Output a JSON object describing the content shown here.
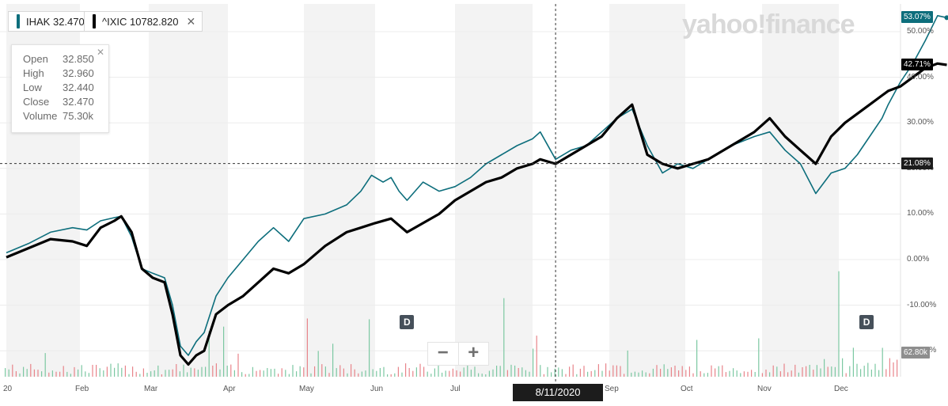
{
  "legend": [
    {
      "symbol": "IHAK",
      "value": "32.470",
      "color": "#0d6e7c",
      "removable": false
    },
    {
      "symbol": "^IXIC",
      "value": "10782.820",
      "color": "#000000",
      "removable": true
    }
  ],
  "tooltip": {
    "close_icon": "close-icon",
    "rows": [
      {
        "label": "Open",
        "value": "32.850"
      },
      {
        "label": "High",
        "value": "32.960"
      },
      {
        "label": "Low",
        "value": "32.440"
      },
      {
        "label": "Close",
        "value": "32.470"
      },
      {
        "label": "Volume",
        "value": "75.30k"
      }
    ]
  },
  "watermark": "yahoo!finance",
  "zoom": {
    "minus": "−",
    "plus": "+"
  },
  "badges": [
    {
      "label": "D",
      "month_index": 5.4
    },
    {
      "label": "D",
      "month_index": 11.45
    }
  ],
  "crosshair": {
    "date_label": "8/11/2020",
    "value_label": "21.08%",
    "value": 21.08,
    "month_index": 7.3
  },
  "last_tags": {
    "ihak": {
      "label": "53.07%",
      "value": 53.07
    },
    "ixic": {
      "label": "42.71%",
      "value": 42.71
    }
  },
  "volume_tag": "62.80k",
  "chart_data": {
    "type": "line",
    "title": "",
    "xlabel": "",
    "ylabel": "",
    "x_axis_labels": [
      "20",
      "Feb",
      "Mar",
      "Apr",
      "May",
      "Jun",
      "Jul",
      "Aug",
      "Sep",
      "Oct",
      "Nov",
      "Dec"
    ],
    "y_axis": {
      "ticks": [
        50,
        40,
        30,
        20,
        10,
        0,
        -10,
        -20
      ],
      "tick_labels": [
        "50.00%",
        "40.00%",
        "30.00%",
        "20.00%",
        "10.00%",
        "0.00%",
        "-10.00%",
        "-20.00%"
      ],
      "ylim": [
        -25,
        55
      ]
    },
    "grid": true,
    "series": [
      {
        "name": "IHAK",
        "color": "#0d6e7c",
        "points": [
          [
            0,
            1.5
          ],
          [
            0.3,
            3.5
          ],
          [
            0.6,
            6
          ],
          [
            0.9,
            7
          ],
          [
            1.1,
            6.5
          ],
          [
            1.3,
            8.5
          ],
          [
            1.5,
            9.2
          ],
          [
            1.6,
            9.5
          ],
          [
            1.75,
            5
          ],
          [
            1.9,
            -2
          ],
          [
            2.05,
            -3
          ],
          [
            2.2,
            -4
          ],
          [
            2.3,
            -10
          ],
          [
            2.4,
            -19
          ],
          [
            2.5,
            -21
          ],
          [
            2.6,
            -18
          ],
          [
            2.7,
            -16
          ],
          [
            2.85,
            -8
          ],
          [
            3.0,
            -4
          ],
          [
            3.2,
            0
          ],
          [
            3.4,
            4
          ],
          [
            3.6,
            7
          ],
          [
            3.8,
            4
          ],
          [
            4.0,
            9
          ],
          [
            4.3,
            10
          ],
          [
            4.6,
            12
          ],
          [
            4.8,
            15
          ],
          [
            4.95,
            18.5
          ],
          [
            5.1,
            17
          ],
          [
            5.2,
            18
          ],
          [
            5.3,
            15
          ],
          [
            5.4,
            13
          ],
          [
            5.6,
            17
          ],
          [
            5.8,
            15
          ],
          [
            6.0,
            16
          ],
          [
            6.2,
            18
          ],
          [
            6.4,
            21
          ],
          [
            6.6,
            23
          ],
          [
            6.8,
            25
          ],
          [
            7.0,
            26.5
          ],
          [
            7.1,
            28
          ],
          [
            7.3,
            22
          ],
          [
            7.5,
            24
          ],
          [
            7.7,
            25
          ],
          [
            7.9,
            28
          ],
          [
            8.1,
            31
          ],
          [
            8.3,
            33
          ],
          [
            8.5,
            25
          ],
          [
            8.7,
            19
          ],
          [
            8.9,
            21
          ],
          [
            9.1,
            20
          ],
          [
            9.3,
            22
          ],
          [
            9.6,
            25
          ],
          [
            9.9,
            27
          ],
          [
            10.1,
            28
          ],
          [
            10.3,
            24
          ],
          [
            10.5,
            21
          ],
          [
            10.7,
            14.5
          ],
          [
            10.9,
            19
          ],
          [
            11.1,
            20
          ],
          [
            11.3,
            23
          ],
          [
            11.5,
            27
          ],
          [
            11.7,
            31
          ],
          [
            11.8,
            34
          ],
          [
            12.0,
            39
          ],
          [
            12.2,
            43
          ],
          [
            12.4,
            48
          ],
          [
            12.6,
            53.5
          ],
          [
            12.75,
            53.07
          ]
        ]
      },
      {
        "name": "^IXIC",
        "color": "#000000",
        "points": [
          [
            0,
            0.5
          ],
          [
            0.3,
            2.5
          ],
          [
            0.6,
            4.5
          ],
          [
            0.9,
            4
          ],
          [
            1.1,
            3
          ],
          [
            1.3,
            7
          ],
          [
            1.5,
            8.5
          ],
          [
            1.6,
            9.5
          ],
          [
            1.75,
            6
          ],
          [
            1.9,
            -2
          ],
          [
            2.05,
            -4
          ],
          [
            2.2,
            -5
          ],
          [
            2.3,
            -12
          ],
          [
            2.4,
            -21
          ],
          [
            2.5,
            -23
          ],
          [
            2.6,
            -21
          ],
          [
            2.7,
            -20
          ],
          [
            2.85,
            -12
          ],
          [
            3.0,
            -10
          ],
          [
            3.2,
            -8
          ],
          [
            3.4,
            -5
          ],
          [
            3.6,
            -2
          ],
          [
            3.8,
            -3
          ],
          [
            4.0,
            -1
          ],
          [
            4.3,
            3
          ],
          [
            4.6,
            6
          ],
          [
            4.8,
            7
          ],
          [
            5.0,
            8
          ],
          [
            5.2,
            9
          ],
          [
            5.4,
            6
          ],
          [
            5.6,
            8
          ],
          [
            5.8,
            10
          ],
          [
            6.0,
            13
          ],
          [
            6.2,
            15
          ],
          [
            6.4,
            17
          ],
          [
            6.6,
            18
          ],
          [
            6.8,
            20
          ],
          [
            7.0,
            21
          ],
          [
            7.1,
            22
          ],
          [
            7.3,
            21
          ],
          [
            7.5,
            23
          ],
          [
            7.7,
            25
          ],
          [
            7.9,
            27
          ],
          [
            8.1,
            31
          ],
          [
            8.3,
            34
          ],
          [
            8.5,
            23
          ],
          [
            8.7,
            21
          ],
          [
            8.9,
            20
          ],
          [
            9.1,
            21
          ],
          [
            9.3,
            22
          ],
          [
            9.6,
            25
          ],
          [
            9.9,
            28
          ],
          [
            10.1,
            31
          ],
          [
            10.3,
            27
          ],
          [
            10.5,
            24
          ],
          [
            10.7,
            21
          ],
          [
            10.9,
            27
          ],
          [
            11.1,
            30
          ],
          [
            11.3,
            32
          ],
          [
            11.5,
            34
          ],
          [
            11.7,
            36
          ],
          [
            11.8,
            37
          ],
          [
            12.0,
            38
          ],
          [
            12.2,
            40
          ],
          [
            12.4,
            42
          ],
          [
            12.6,
            43
          ],
          [
            12.75,
            42.71
          ]
        ]
      }
    ]
  }
}
